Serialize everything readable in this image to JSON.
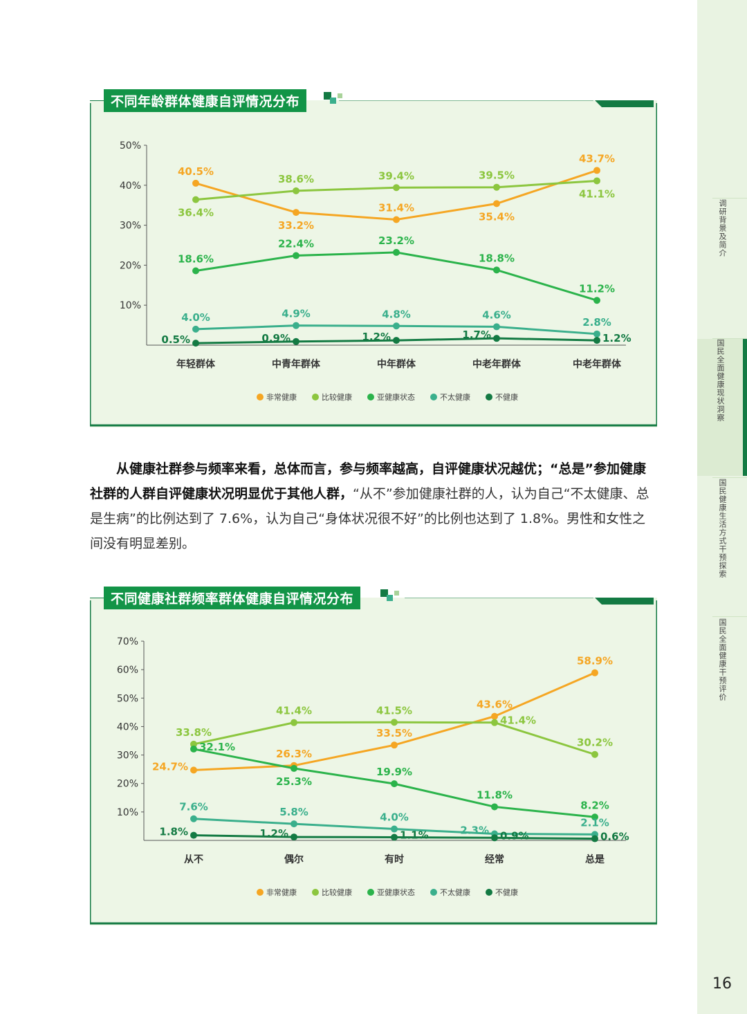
{
  "chart1": {
    "title": "不同年龄群体健康自评情况分布",
    "chart_data": {
      "type": "line",
      "categories": [
        "年轻群体",
        "中青年群体",
        "中年群体",
        "中老年群体",
        "中老年群体"
      ],
      "ylim": [
        0,
        50
      ],
      "yticks": [
        "50%",
        "40%",
        "30%",
        "20%",
        "10%"
      ],
      "ytick_values": [
        50,
        40,
        30,
        20,
        10
      ],
      "series": [
        {
          "name": "非常健康",
          "color": "#f5a623",
          "values": [
            40.5,
            33.2,
            31.4,
            35.4,
            43.7
          ],
          "labels": [
            "40.5%",
            "33.2%",
            "31.4%",
            "35.4%",
            "43.7%"
          ],
          "pos": [
            "a",
            "b",
            "a",
            "b",
            "a"
          ]
        },
        {
          "name": "比较健康",
          "color": "#8cc63f",
          "values": [
            36.4,
            38.6,
            39.4,
            39.5,
            41.1
          ],
          "labels": [
            "36.4%",
            "38.6%",
            "39.4%",
            "39.5%",
            "41.1%"
          ],
          "pos": [
            "b",
            "a",
            "a",
            "a",
            "b"
          ]
        },
        {
          "name": "亚健康状态",
          "color": "#2bb34b",
          "values": [
            18.6,
            22.4,
            23.2,
            18.8,
            11.2
          ],
          "labels": [
            "18.6%",
            "22.4%",
            "23.2%",
            "18.8%",
            "11.2%"
          ],
          "pos": [
            "a",
            "a",
            "a",
            "a",
            "a"
          ]
        },
        {
          "name": "不太健康",
          "color": "#3aaf8c",
          "values": [
            4.0,
            4.9,
            4.8,
            4.6,
            2.8
          ],
          "labels": [
            "4.0%",
            "4.9%",
            "4.8%",
            "4.6%",
            "2.8%"
          ],
          "pos": [
            "a",
            "a",
            "a",
            "a",
            "a"
          ]
        },
        {
          "name": "不健康",
          "color": "#137a43",
          "values": [
            0.5,
            0.9,
            1.2,
            1.7,
            1.2
          ],
          "labels": [
            "0.5%",
            "0.9%",
            "1.2%",
            "1.7%",
            "1.2%"
          ],
          "pos": [
            "l",
            "l",
            "l",
            "l",
            "r"
          ]
        }
      ]
    }
  },
  "paragraph": {
    "bold_part": "从健康社群参与频率来看，总体而言，参与频率越高，自评健康状况越优；“总是”参加健康社群的人群自评健康状况明显优于其他人群，",
    "normal_part": "“从不”参加健康社群的人，认为自己“不太健康、总是生病”的比例达到了 7.6%，认为自己“身体状况很不好”的比例也达到了 1.8%。男性和女性之间没有明显差别。"
  },
  "chart2": {
    "title": "不同健康社群频率群体健康自评情况分布",
    "chart_data": {
      "type": "line",
      "categories": [
        "从不",
        "偶尔",
        "有时",
        "经常",
        "总是"
      ],
      "ylim": [
        0,
        70
      ],
      "yticks": [
        "70%",
        "60%",
        "50%",
        "40%",
        "30%",
        "20%",
        "10%"
      ],
      "ytick_values": [
        70,
        60,
        50,
        40,
        30,
        20,
        10
      ],
      "series": [
        {
          "name": "非常健康",
          "color": "#f5a623",
          "values": [
            24.7,
            26.3,
            33.5,
            43.6,
            58.9
          ],
          "labels": [
            "24.7%",
            "26.3%",
            "33.5%",
            "43.6%",
            "58.9%"
          ],
          "pos": [
            "l",
            "a",
            "a",
            "a",
            "a"
          ]
        },
        {
          "name": "比较健康",
          "color": "#8cc63f",
          "values": [
            33.8,
            41.4,
            41.5,
            41.4,
            30.2
          ],
          "labels": [
            "33.8%",
            "41.4%",
            "41.5%",
            "41.4%",
            "30.2%"
          ],
          "pos": [
            "a",
            "a",
            "a",
            "r",
            "a"
          ]
        },
        {
          "name": "亚健康状态",
          "color": "#2bb34b",
          "values": [
            32.1,
            25.3,
            19.9,
            11.8,
            8.2
          ],
          "labels": [
            "32.1%",
            "25.3%",
            "19.9%",
            "11.8%",
            "8.2%"
          ],
          "pos": [
            "r",
            "b",
            "a",
            "a",
            "a"
          ]
        },
        {
          "name": "不太健康",
          "color": "#3aaf8c",
          "values": [
            7.6,
            5.8,
            4.0,
            2.3,
            2.1
          ],
          "labels": [
            "7.6%",
            "5.8%",
            "4.0%",
            "2.3%",
            "2.1%"
          ],
          "pos": [
            "a",
            "a",
            "a",
            "l",
            "a"
          ]
        },
        {
          "name": "不健康",
          "color": "#137a43",
          "values": [
            1.8,
            1.2,
            1.1,
            0.9,
            0.6
          ],
          "labels": [
            "1.8%",
            "1.2%",
            "1.1%",
            "0.9%",
            "0.6%"
          ],
          "pos": [
            "l",
            "l",
            "r",
            "r",
            "r"
          ]
        }
      ]
    }
  },
  "sidebar": {
    "tabs": [
      "调研背景及简介",
      "国民全面健康现状洞察",
      "国民健康生活方式干预探索",
      "国民全面健康干预评价"
    ],
    "active_index": 1
  },
  "page_number": "16",
  "colors": {
    "brand_green": "#129447",
    "dark_green": "#137a43",
    "panel_bg": "#edf6e6",
    "sidebar_bg": "#e9f3e2"
  }
}
